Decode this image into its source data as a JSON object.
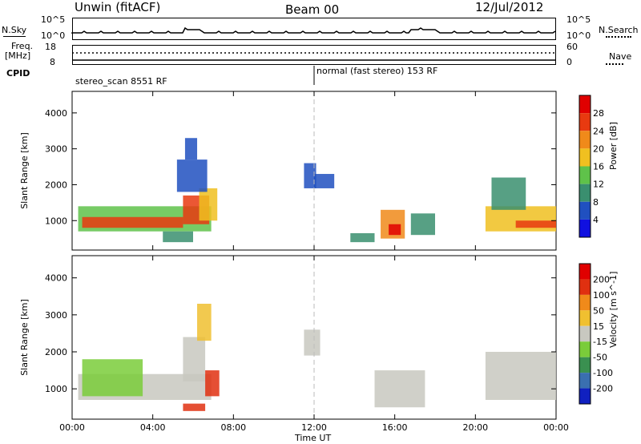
{
  "header": {
    "station": "Unwin (fitACF)",
    "beam": "Beam 00",
    "date": "12/Jul/2012"
  },
  "noise_panel": {
    "left_label": "N.Sky",
    "right_label": "N.Search",
    "left_ticks": [
      "10^5",
      "10^0"
    ],
    "right_ticks": [
      "10^5",
      "10^0"
    ]
  },
  "freq_panel": {
    "left_label_1": "Freq.",
    "left_label_2": "[MHz]",
    "right_label": "Nave",
    "left_ticks": [
      "18",
      "8"
    ],
    "right_ticks": [
      "60",
      "0"
    ]
  },
  "cpid_panel": {
    "label": "CPID",
    "segments": [
      {
        "text": "stereo_scan 8551 RF",
        "start_hour": 0
      },
      {
        "text": "normal (fast stereo) 153 RF",
        "start_hour": 12
      }
    ]
  },
  "x_axis": {
    "label": "Time UT",
    "ticks": [
      "00:00",
      "04:00",
      "08:00",
      "12:00",
      "16:00",
      "20:00",
      "00:00"
    ],
    "range_hours": [
      0,
      24
    ]
  },
  "colorbars": {
    "power": {
      "title": "Power [dB]",
      "ticks": [
        "28",
        "24",
        "20",
        "16",
        "12",
        "8",
        "4"
      ],
      "colors": [
        "#1010e0",
        "#2050c0",
        "#3a8f6f",
        "#5fc24a",
        "#f0c020",
        "#f08a1a",
        "#e83a10",
        "#e00000"
      ]
    },
    "velocity": {
      "title": "Velocity [m s^-1]",
      "ticks": [
        "200",
        "100",
        "50",
        "15",
        "-15",
        "-50",
        "-100",
        "-200"
      ],
      "colors": [
        "#1020c0",
        "#3a6fb0",
        "#3a9050",
        "#7acc3a",
        "#c8c8c0",
        "#f0c030",
        "#f08a1a",
        "#e03010",
        "#e00000"
      ]
    }
  },
  "chart_data": [
    {
      "type": "heatmap",
      "title": "Power",
      "xlabel": "Time UT",
      "ylabel": "Slant Range [km]",
      "ylim": [
        180,
        4600
      ],
      "y_ticks": [
        1000,
        2000,
        3000,
        4000
      ],
      "colorbar_label": "Power [dB]",
      "colorbar_range": [
        0,
        30
      ],
      "regions": [
        {
          "t_start": 0.3,
          "t_end": 6.9,
          "range_low": 700,
          "range_high": 1400,
          "power_db": 14
        },
        {
          "t_start": 0.5,
          "t_end": 5.5,
          "range_low": 800,
          "range_high": 1100,
          "power_db": 24
        },
        {
          "t_start": 5.5,
          "t_end": 6.8,
          "range_low": 900,
          "range_high": 1700,
          "power_db": 26
        },
        {
          "t_start": 6.3,
          "t_end": 7.2,
          "range_low": 1000,
          "range_high": 1900,
          "power_db": 18
        },
        {
          "t_start": 5.2,
          "t_end": 6.7,
          "range_low": 1800,
          "range_high": 2700,
          "power_db": 6
        },
        {
          "t_start": 5.6,
          "t_end": 6.2,
          "range_low": 2700,
          "range_high": 3300,
          "power_db": 4
        },
        {
          "t_start": 4.5,
          "t_end": 6.0,
          "range_low": 400,
          "range_high": 700,
          "power_db": 8
        },
        {
          "t_start": 11.5,
          "t_end": 12.1,
          "range_low": 1900,
          "range_high": 2600,
          "power_db": 6
        },
        {
          "t_start": 12.0,
          "t_end": 13.0,
          "range_low": 1900,
          "range_high": 2300,
          "power_db": 4
        },
        {
          "t_start": 15.3,
          "t_end": 16.5,
          "range_low": 500,
          "range_high": 1300,
          "power_db": 20
        },
        {
          "t_start": 15.7,
          "t_end": 16.3,
          "range_low": 600,
          "range_high": 900,
          "power_db": 28
        },
        {
          "t_start": 13.8,
          "t_end": 15.0,
          "range_low": 400,
          "range_high": 650,
          "power_db": 8
        },
        {
          "t_start": 16.8,
          "t_end": 18.0,
          "range_low": 600,
          "range_high": 1200,
          "power_db": 8
        },
        {
          "t_start": 20.5,
          "t_end": 24.0,
          "range_low": 700,
          "range_high": 1400,
          "power_db": 16
        },
        {
          "t_start": 20.8,
          "t_end": 22.5,
          "range_low": 1300,
          "range_high": 2200,
          "power_db": 8
        },
        {
          "t_start": 22.0,
          "t_end": 24.0,
          "range_low": 800,
          "range_high": 1000,
          "power_db": 26
        }
      ]
    },
    {
      "type": "heatmap",
      "title": "Velocity",
      "xlabel": "Time UT",
      "ylabel": "Slant Range [km]",
      "ylim": [
        180,
        4600
      ],
      "y_ticks": [
        1000,
        2000,
        3000,
        4000
      ],
      "colorbar_label": "Velocity [m s^-1]",
      "colorbar_range": [
        -250,
        250
      ],
      "regions": [
        {
          "t_start": 0.3,
          "t_end": 6.9,
          "range_low": 700,
          "range_high": 1400,
          "velocity": 0
        },
        {
          "t_start": 5.5,
          "t_end": 6.6,
          "range_low": 1200,
          "range_high": 2400,
          "velocity": 0
        },
        {
          "t_start": 6.2,
          "t_end": 6.9,
          "range_low": 2300,
          "range_high": 3300,
          "velocity": -40
        },
        {
          "t_start": 6.6,
          "t_end": 7.3,
          "range_low": 800,
          "range_high": 1500,
          "velocity": -200
        },
        {
          "t_start": 5.5,
          "t_end": 6.6,
          "range_low": 400,
          "range_high": 600,
          "velocity": -110
        },
        {
          "t_start": 0.5,
          "t_end": 3.5,
          "range_low": 800,
          "range_high": 1800,
          "velocity": 30
        },
        {
          "t_start": 11.5,
          "t_end": 12.3,
          "range_low": 1900,
          "range_high": 2600,
          "velocity": 0
        },
        {
          "t_start": 15.0,
          "t_end": 17.5,
          "range_low": 500,
          "range_high": 1500,
          "velocity": 0
        },
        {
          "t_start": 20.5,
          "t_end": 24.0,
          "range_low": 700,
          "range_high": 2000,
          "velocity": 0
        }
      ]
    }
  ]
}
